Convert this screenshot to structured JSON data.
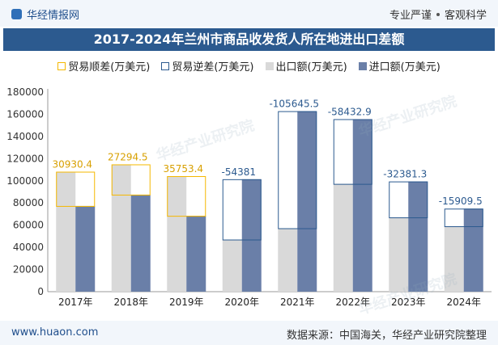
{
  "header": {
    "brand": "华经情报网",
    "tag1": "专业严谨",
    "tag2": "客观科学"
  },
  "title": "2017-2024年兰州市商品收发货人所在地进出口差额",
  "watermark": "华经产业研究院",
  "footer": {
    "website": "www.huaon.com",
    "source": "数据来源：中国海关，华经产业研究院整理"
  },
  "chart_data": {
    "type": "bar",
    "categories": [
      "2017年",
      "2018年",
      "2019年",
      "2020年",
      "2021年",
      "2022年",
      "2023年",
      "2024年"
    ],
    "series": [
      {
        "name": "贸易顺差(万美元)",
        "values": [
          30930.4,
          27294.5,
          35753.4,
          null,
          null,
          null,
          null,
          null
        ],
        "color": "#f5b800",
        "style": "outline"
      },
      {
        "name": "贸易逆差(万美元)",
        "values": [
          null,
          null,
          null,
          -54381,
          -105645.5,
          -58432.9,
          -32381.3,
          -15909.5
        ],
        "color": "#2c5a8f",
        "style": "outline"
      },
      {
        "name": "出口额(万美元)",
        "values": [
          108200,
          114800,
          104200,
          47000,
          57200,
          97200,
          67000,
          59000
        ],
        "color": "#d9d9d9"
      },
      {
        "name": "进口额(万美元)",
        "values": [
          77300,
          87500,
          68400,
          101400,
          162800,
          155600,
          99400,
          74900
        ],
        "color": "#6a7fa8"
      }
    ],
    "data_labels": [
      "30930.4",
      "27294.5",
      "35753.4",
      "-54381",
      "-105645.5",
      "-58432.9",
      "-32381.3",
      "-15909.5"
    ],
    "yticks": [
      "0",
      "20000",
      "40000",
      "60000",
      "80000",
      "100000",
      "120000",
      "140000",
      "160000",
      "180000"
    ],
    "ylim": [
      0,
      180000
    ],
    "legend_position": "top",
    "grid": false
  }
}
